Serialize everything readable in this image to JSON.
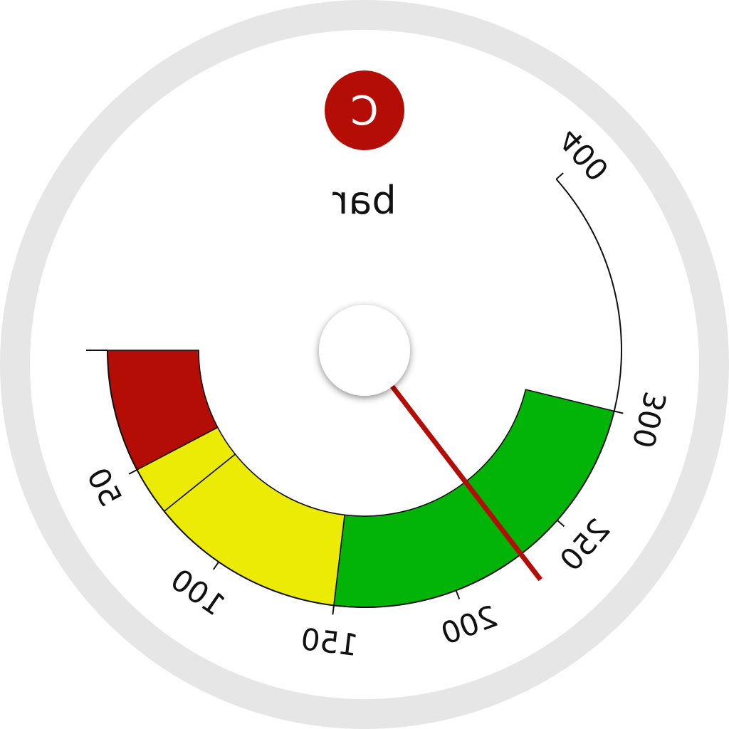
{
  "gauge": {
    "unit": "bar",
    "logo_letter": "C",
    "min": 0,
    "max": 400,
    "value": 230,
    "mirrored": true,
    "scale_labels": [
      "50",
      "100",
      "150",
      "200",
      "250",
      "300",
      "400"
    ],
    "bands": [
      {
        "from": 0,
        "to": 50,
        "color": "#b30d05"
      },
      {
        "from": 50,
        "to": 70,
        "color": "#ebeb05"
      },
      {
        "from": 70,
        "to": 150,
        "color": "#ebeb05"
      },
      {
        "from": 150,
        "to": 300,
        "color": "#02b407"
      }
    ],
    "colors": {
      "bezel": "#e6e6e6",
      "face": "#ffffff",
      "needle": "#b30d05",
      "logo": "#b30d05",
      "ink": "#111111"
    }
  }
}
